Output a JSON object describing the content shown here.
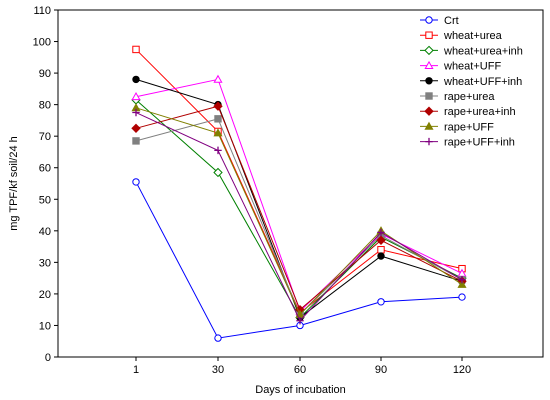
{
  "chart_data": {
    "type": "line",
    "title": "",
    "xlabel": "Days of incubation",
    "ylabel": "mg TPF/kf soil/24 h",
    "x": [
      "1",
      "30",
      "60",
      "90",
      "120"
    ],
    "ylim": [
      0,
      110
    ],
    "yticks": [
      "0",
      "10",
      "20",
      "30",
      "40",
      "50",
      "60",
      "70",
      "80",
      "90",
      "100",
      "110"
    ],
    "grid": false,
    "legend_position": "top-right",
    "series": [
      {
        "name": "Crt",
        "color": "#0000ff",
        "marker": "circle-open",
        "values": [
          55.5,
          6,
          10,
          17.5,
          19
        ]
      },
      {
        "name": "wheat+urea",
        "color": "#ff0000",
        "marker": "square-open",
        "values": [
          97.5,
          71.5,
          14,
          34,
          28
        ]
      },
      {
        "name": "wheat+urea+inh",
        "color": "#008000",
        "marker": "diamond-open",
        "values": [
          81.5,
          58.5,
          12.5,
          38,
          25
        ]
      },
      {
        "name": "wheat+UFF",
        "color": "#ff00ff",
        "marker": "triangle-open",
        "values": [
          82.5,
          88,
          14.5,
          39,
          26.5
        ]
      },
      {
        "name": "wheat+UFF+inh",
        "color": "#000000",
        "marker": "circle-filled",
        "values": [
          88,
          80,
          12.5,
          32,
          24
        ]
      },
      {
        "name": "rape+urea",
        "color": "#808080",
        "marker": "square-filled",
        "values": [
          68.5,
          75.5,
          13.5,
          38.5,
          24.5
        ]
      },
      {
        "name": "rape+urea+inh",
        "color": "#b00000",
        "marker": "diamond-filled",
        "values": [
          72.5,
          79.5,
          15,
          37,
          24
        ]
      },
      {
        "name": "rape+UFF",
        "color": "#808000",
        "marker": "triangle-filled",
        "values": [
          79,
          71,
          13.5,
          40,
          23
        ]
      },
      {
        "name": "rape+UFF+inh",
        "color": "#800080",
        "marker": "plus",
        "values": [
          77.5,
          65.5,
          11.5,
          39.5,
          24.5
        ]
      }
    ]
  }
}
